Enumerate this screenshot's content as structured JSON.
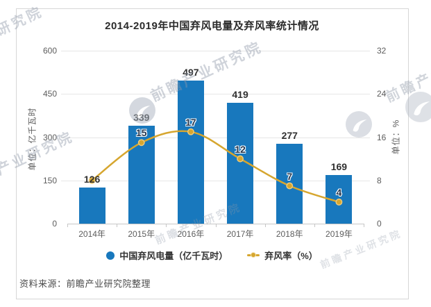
{
  "title": "2014-2019年中国弃风电量及弃风率统计情况",
  "source": "资料来源：前瞻产业研究院整理",
  "watermark": {
    "text": "前瞻产业研究院"
  },
  "colors": {
    "bar": "#1878bd",
    "line": "#d6a62f",
    "line_marker_border": "#eecb7a",
    "line_label": "#24364e",
    "bar_label": "#303030",
    "title_text": "#2b2b2b",
    "axis_text": "#5c5c5c",
    "grid": "#e6e6e6",
    "axis_line": "#c6c6c6"
  },
  "legend": [
    {
      "label": "中国弃风电量（亿千瓦时）",
      "type": "bar"
    },
    {
      "label": "弃风率（%）",
      "type": "line"
    }
  ],
  "chart_data": {
    "type": "bar",
    "subtype": "bar+line combo, dual y-axis",
    "title": "2014-2019年中国弃风电量及弃风率统计情况",
    "categories": [
      "2014年",
      "2015年",
      "2016年",
      "2017年",
      "2018年",
      "2019年"
    ],
    "series": [
      {
        "name": "中国弃风电量（亿千瓦时）",
        "type": "bar",
        "axis": "left",
        "values": [
          126,
          339,
          497,
          419,
          277,
          169
        ],
        "data_labels": [
          "126",
          "339",
          "497",
          "419",
          "277",
          "169"
        ]
      },
      {
        "name": "弃风率（%）",
        "type": "line",
        "axis": "right",
        "smooth": true,
        "values": [
          8,
          15,
          17,
          12,
          7,
          4
        ],
        "data_labels": [
          "",
          "15",
          "17",
          "12",
          "7",
          "4"
        ]
      }
    ],
    "left_axis": {
      "title": "单位：亿千瓦时",
      "min": 0,
      "max": 600,
      "ticks": [
        0,
        150,
        300,
        450,
        600
      ]
    },
    "right_axis": {
      "title": "单位：%",
      "min": 0,
      "max": 32,
      "ticks": [
        0,
        8,
        16,
        24,
        32
      ]
    },
    "grid": true,
    "legend_position": "bottom"
  }
}
